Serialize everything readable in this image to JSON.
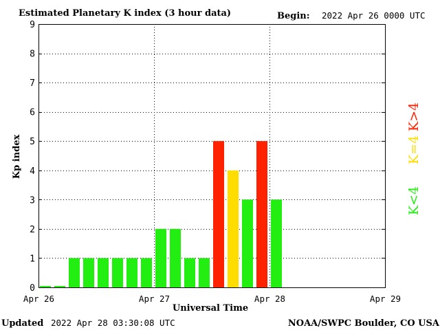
{
  "header": {
    "title": "Estimated Planetary K index (3 hour data)",
    "begin_label": "Begin:",
    "begin_value": "2022 Apr 26 0000 UTC"
  },
  "footer": {
    "updated_label": "Updated",
    "updated_value": "2022 Apr 28 03:30:08 UTC",
    "source": "NOAA/SWPC Boulder, CO USA"
  },
  "legend": {
    "high": "K>4",
    "equal": "K=4",
    "low": "K<4",
    "colors": {
      "low": "#22ee11",
      "equal": "#ffdd00",
      "high": "#ff2200"
    }
  },
  "chart_data": {
    "type": "bar",
    "title": "Estimated Planetary K index (3 hour data)",
    "xlabel": "Universal Time",
    "ylabel": "Kp index",
    "ylim": [
      0,
      9
    ],
    "yticks": [
      "0",
      "1",
      "2",
      "3",
      "4",
      "5",
      "6",
      "7",
      "8",
      "9"
    ],
    "xticks": [
      "Apr 26",
      "Apr 27",
      "Apr 28",
      "Apr 29"
    ],
    "days": 3,
    "slots_per_day": 8,
    "grid": "dotted",
    "categories": [
      "Apr 26 00",
      "Apr 26 03",
      "Apr 26 06",
      "Apr 26 09",
      "Apr 26 12",
      "Apr 26 15",
      "Apr 26 18",
      "Apr 26 21",
      "Apr 27 00",
      "Apr 27 03",
      "Apr 27 06",
      "Apr 27 09",
      "Apr 27 12",
      "Apr 27 15",
      "Apr 27 18",
      "Apr 27 21",
      "Apr 28 00"
    ],
    "values": [
      0.05,
      0.05,
      1,
      1,
      1,
      1,
      1,
      1,
      2,
      2,
      1,
      1,
      5,
      4,
      3,
      5,
      3
    ]
  }
}
